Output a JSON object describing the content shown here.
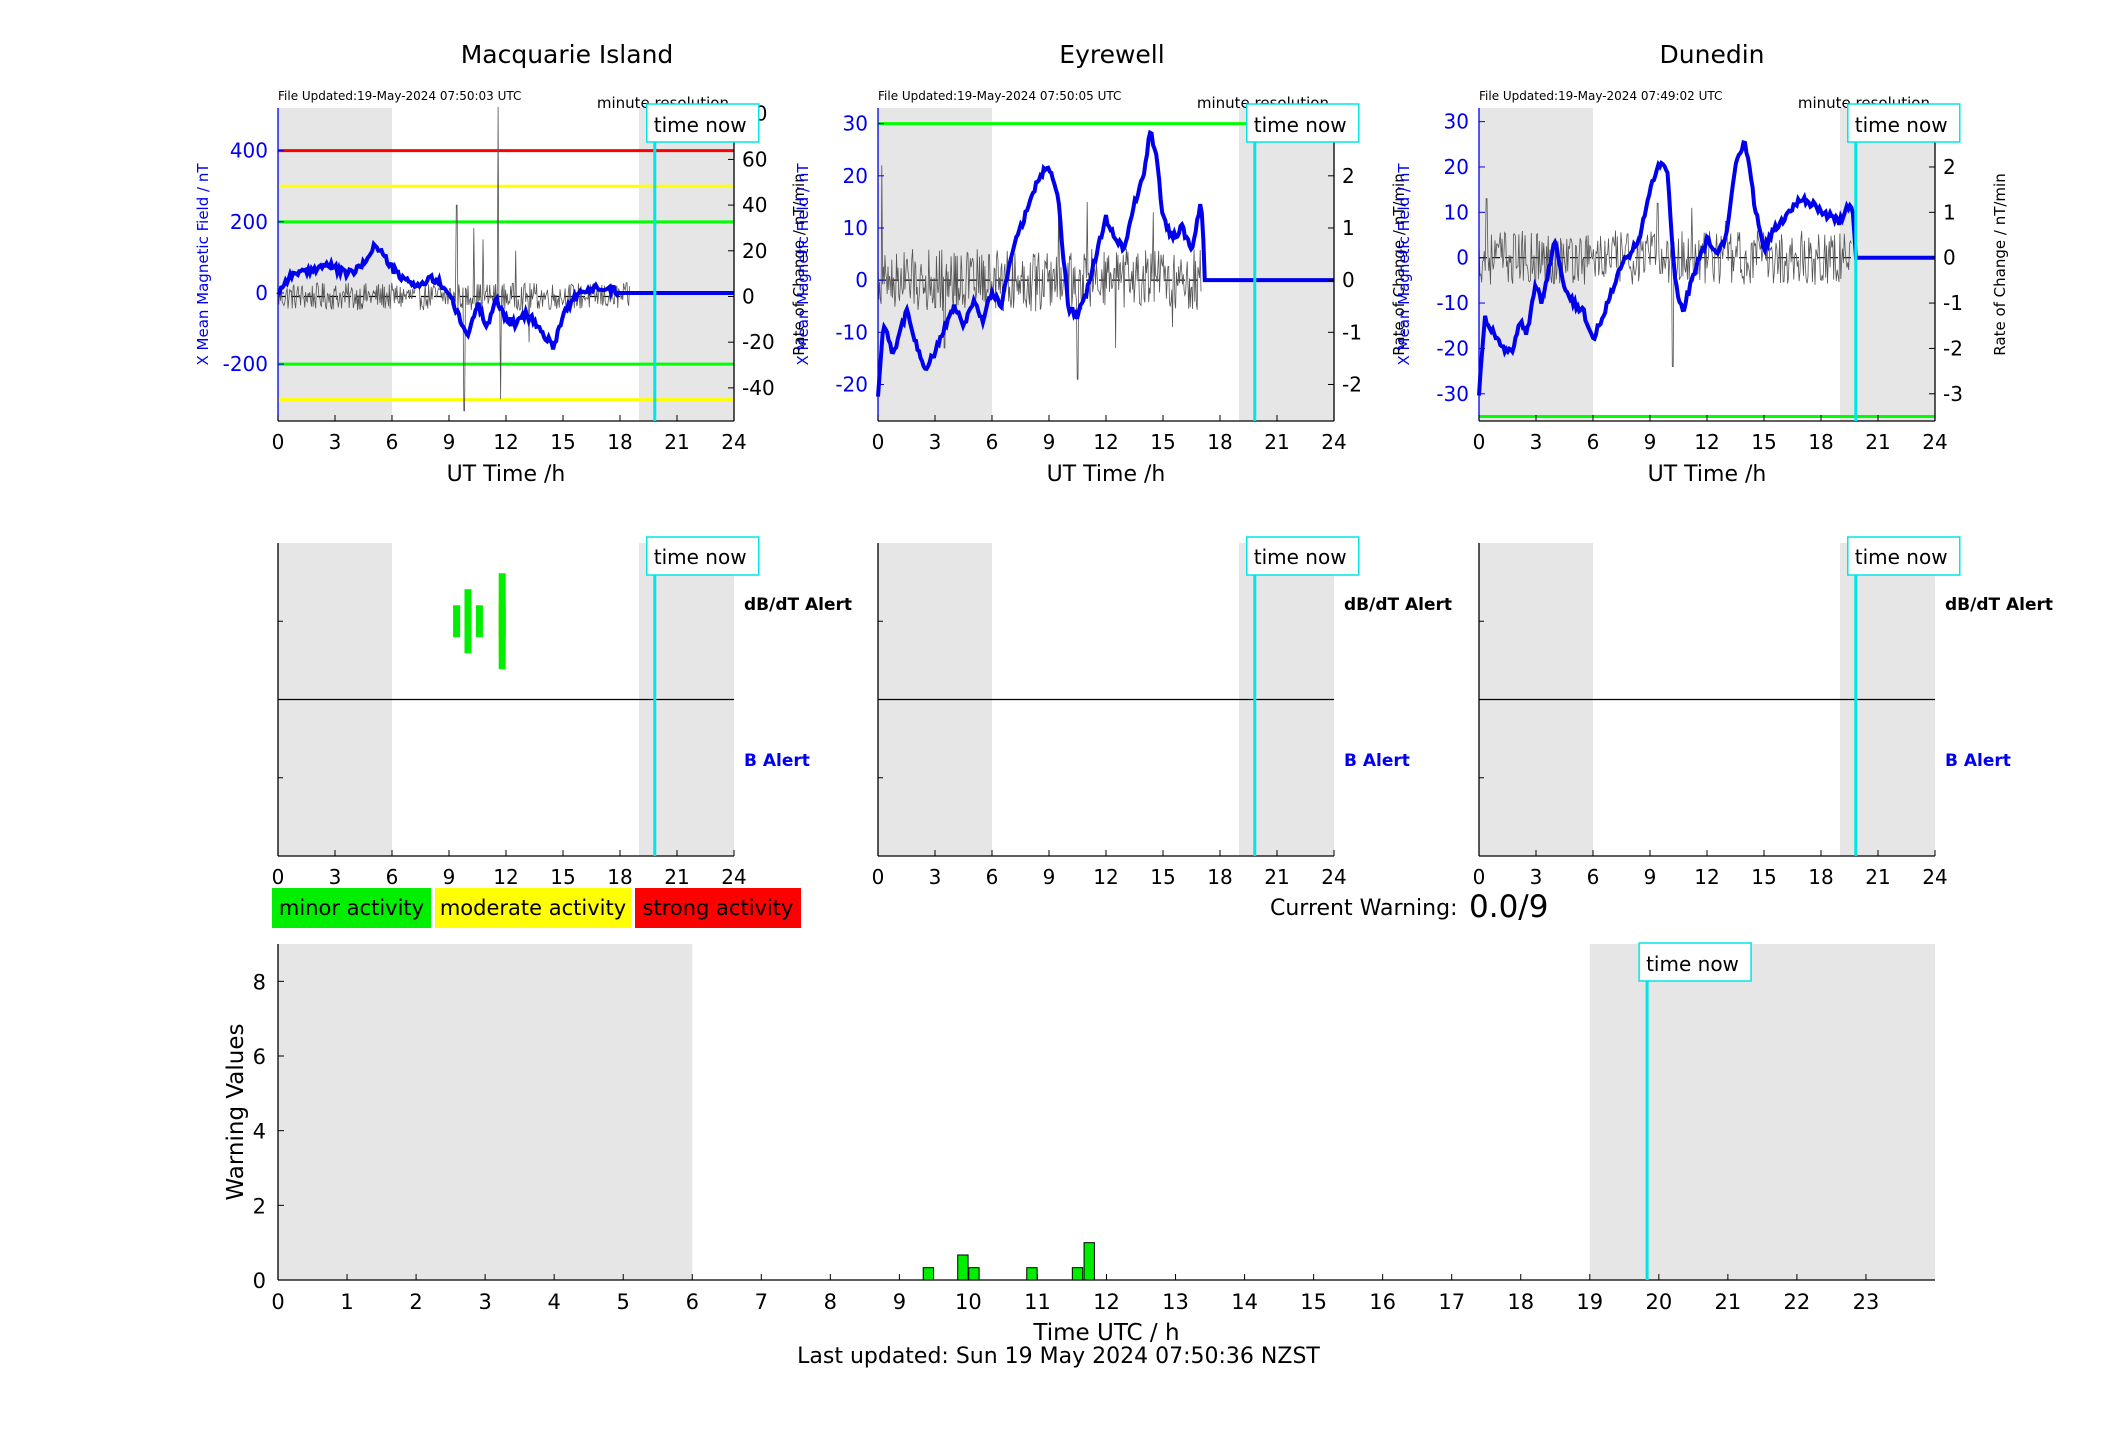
{
  "stations": [
    {
      "name": "Macquarie Island",
      "file_updated": "File Updated:19-May-2024 07:50:03 UTC",
      "resolution_label": "minute resolution",
      "time_now_label": "time now",
      "ylabel_left": "X Mean Magnetic Field / nT",
      "ylabel_right": "Rate of Change / nT/min",
      "xlabel": "UT Time /h",
      "ylim_left": [
        -360,
        520
      ],
      "yticks_left": [
        -200,
        0,
        200,
        400
      ],
      "ylim_right": [
        -54.5,
        82.5
      ],
      "yticks_right": [
        -40,
        -20,
        0,
        20,
        40,
        60,
        80
      ],
      "thresholds": [
        {
          "value": 400,
          "color": "#ff0000"
        },
        {
          "value": 300,
          "color": "#ffff00"
        },
        {
          "value": 200,
          "color": "#00ff00"
        },
        {
          "value": -200,
          "color": "#00ff00"
        },
        {
          "value": -300,
          "color": "#ffff00"
        }
      ],
      "x_keys": [
        0,
        0.5,
        1,
        1.5,
        2,
        2.5,
        3,
        3.5,
        4,
        4.5,
        5,
        5.2,
        5.5,
        6,
        6.5,
        7,
        7.5,
        8,
        8.5,
        9,
        9.3,
        9.6,
        10,
        10.5,
        11,
        11.5,
        12,
        12.5,
        13,
        13.5,
        14,
        14.5,
        15,
        15.5,
        16,
        16.5,
        17,
        17.5,
        18,
        18.5,
        19,
        19.5,
        19.83,
        20,
        24
      ],
      "b_keys": [
        0,
        40,
        60,
        55,
        70,
        80,
        70,
        55,
        60,
        80,
        130,
        130,
        110,
        70,
        40,
        30,
        20,
        40,
        30,
        0,
        -40,
        -80,
        -120,
        -30,
        -90,
        -20,
        -70,
        -90,
        -60,
        -80,
        -120,
        -150,
        -60,
        -20,
        0,
        10,
        20,
        10,
        0,
        0,
        0,
        0,
        0,
        0,
        0
      ],
      "roc_spikes": [
        {
          "x": 9.4,
          "v": 40
        },
        {
          "x": 9.8,
          "v": -50
        },
        {
          "x": 10.3,
          "v": 30
        },
        {
          "x": 10.8,
          "v": 25
        },
        {
          "x": 11.6,
          "v": 83
        },
        {
          "x": 11.7,
          "v": -45
        },
        {
          "x": 12.5,
          "v": 20
        },
        {
          "x": 13.2,
          "v": -20
        }
      ],
      "roc_amp": 6,
      "roc_until": 18.5,
      "data_end": 18,
      "alerts": {
        "dbdt_label": "dB/dT Alert",
        "b_label": "B Alert",
        "bars": [
          {
            "x": 9.4,
            "levels": [
              "minor"
            ]
          },
          {
            "x": 10,
            "levels": [
              "moderate",
              "minor"
            ]
          },
          {
            "x": 10.6,
            "levels": [
              "minor"
            ]
          },
          {
            "x": 11.8,
            "levels": [
              "strong",
              "moderate",
              "minor"
            ]
          }
        ]
      }
    },
    {
      "name": "Eyrewell",
      "file_updated": "File Updated:19-May-2024 07:50:05 UTC",
      "resolution_label": "minute resolution",
      "time_now_label": "time now",
      "ylabel_left": "X Mean Magnetic Field / nT",
      "ylabel_right": "Rate of Change / nT/min",
      "xlabel": "UT Time /h",
      "ylim_left": [
        -27,
        33
      ],
      "yticks_left": [
        -20,
        -10,
        0,
        10,
        20,
        30
      ],
      "ylim_right": [
        -2.7,
        3.3
      ],
      "yticks_right": [
        -2,
        -1,
        0,
        1,
        2,
        3
      ],
      "thresholds": [
        {
          "value": 30,
          "color": "#00ff00"
        }
      ],
      "x_keys": [
        0,
        0.3,
        0.8,
        1.5,
        2,
        2.5,
        3,
        3.5,
        4,
        4.5,
        5,
        5.5,
        6,
        6.5,
        7,
        7.5,
        8,
        8.5,
        9,
        9.5,
        10,
        10.5,
        11,
        11.5,
        12,
        12.5,
        13,
        13.5,
        14,
        14.3,
        14.6,
        15,
        15.5,
        16,
        16.5,
        17,
        17.1,
        17.2,
        19.83,
        24
      ],
      "b_keys": [
        -22,
        -8,
        -14,
        -6,
        -12,
        -17,
        -14,
        -9,
        -5,
        -9,
        -4,
        -8,
        -2,
        -5,
        5,
        10,
        15,
        20,
        22,
        15,
        -5,
        -7,
        -2,
        5,
        12,
        8,
        6,
        15,
        20,
        29,
        25,
        12,
        8,
        10,
        6,
        15,
        9,
        0,
        0,
        0
      ],
      "roc_spikes": [
        {
          "x": 0.2,
          "v": 2.2
        },
        {
          "x": 3.5,
          "v": -1.3
        },
        {
          "x": 9.5,
          "v": 1.5
        },
        {
          "x": 10.5,
          "v": -1.9
        },
        {
          "x": 11,
          "v": 1.5
        },
        {
          "x": 12.5,
          "v": -1.3
        },
        {
          "x": 14.5,
          "v": 1.3
        },
        {
          "x": 15.5,
          "v": -0.9
        }
      ],
      "roc_amp": 0.6,
      "roc_until": 17,
      "data_end": 17.2,
      "alerts": {
        "dbdt_label": "dB/dT Alert",
        "b_label": "B Alert",
        "bars": []
      }
    },
    {
      "name": "Dunedin",
      "file_updated": "File Updated:19-May-2024 07:49:02 UTC",
      "resolution_label": "minute resolution",
      "time_now_label": "time now",
      "ylabel_left": "X Mean Magnetic Field / nT",
      "ylabel_right": "Rate of Change / nT/min",
      "xlabel": "UT Time /h",
      "ylim_left": [
        -36,
        33
      ],
      "yticks_left": [
        -30,
        -20,
        -10,
        0,
        10,
        20,
        30
      ],
      "ylim_right": [
        -3.6,
        3.3
      ],
      "yticks_right": [
        -3,
        -2,
        -1,
        0,
        1,
        2,
        3
      ],
      "thresholds": [
        {
          "value": -35,
          "color": "#00ff00"
        }
      ],
      "x_keys": [
        0,
        0.3,
        0.7,
        1.2,
        1.7,
        2.2,
        2.5,
        3,
        3.3,
        3.7,
        4,
        4.5,
        5,
        5.5,
        6,
        6.5,
        7,
        7.5,
        8,
        8.5,
        9,
        9.4,
        9.9,
        10.3,
        10.7,
        11,
        11.5,
        12,
        12.5,
        13,
        13.5,
        14,
        14.5,
        15,
        15.5,
        16,
        16.5,
        17,
        17.5,
        18,
        18.5,
        19,
        19.5,
        19.7,
        19.83,
        24
      ],
      "b_keys": [
        -30,
        -13,
        -16,
        -20,
        -21,
        -14,
        -17,
        -6,
        -10,
        -2,
        4,
        -6,
        -10,
        -12,
        -18,
        -13,
        -7,
        -1,
        1,
        5,
        15,
        20,
        20,
        -5,
        -12,
        -8,
        -1,
        4,
        1,
        4,
        20,
        26,
        12,
        2,
        6,
        8,
        11,
        13,
        12,
        10,
        9,
        8,
        12,
        10,
        0,
        0
      ],
      "roc_spikes": [
        {
          "x": 0.4,
          "v": 1.3
        },
        {
          "x": 9.4,
          "v": 1.2
        },
        {
          "x": 10.2,
          "v": -2.4
        },
        {
          "x": 11.2,
          "v": 1.1
        },
        {
          "x": 3.5,
          "v": -0.9
        },
        {
          "x": 13,
          "v": 0.8
        }
      ],
      "roc_amp": 0.6,
      "roc_until": 19.6,
      "data_end": 19.83,
      "alerts": {
        "dbdt_label": "dB/dT Alert",
        "b_label": "B Alert",
        "bars": []
      }
    }
  ],
  "shared": {
    "xlim": [
      0,
      24
    ],
    "xticks": [
      0,
      3,
      6,
      9,
      12,
      15,
      18,
      21,
      24
    ],
    "night_shading": [
      [
        0,
        6
      ],
      [
        19,
        24
      ]
    ],
    "time_now": 19.83,
    "colors": {
      "field_line": "#0000ee",
      "roc_line": "#555555",
      "time_now": "#00e5e5",
      "shade": "#e6e6e6",
      "minor": "#00ee00",
      "moderate": "#ffff00",
      "strong": "#ff0000"
    }
  },
  "legend": {
    "minor": "minor activity",
    "moderate": "moderate activity",
    "strong": "strong activity"
  },
  "current_warning": {
    "label": "Current Warning:",
    "value": "0.0/9"
  },
  "chart_data": {
    "type": "bar",
    "title": "",
    "xlabel": "Time UTC / h",
    "ylabel": "Warning Values",
    "xlim": [
      0,
      24
    ],
    "ylim": [
      0,
      9
    ],
    "xticks": [
      0,
      1,
      2,
      3,
      4,
      5,
      6,
      7,
      8,
      9,
      10,
      11,
      12,
      13,
      14,
      15,
      16,
      17,
      18,
      19,
      20,
      21,
      22,
      23
    ],
    "yticks": [
      0,
      2,
      4,
      6,
      8
    ],
    "x": [
      9.42,
      9.92,
      10.08,
      10.92,
      11.58,
      11.75
    ],
    "values": [
      0.33,
      0.67,
      0.33,
      0.33,
      0.33,
      1.0
    ],
    "shading": [
      [
        0,
        6
      ],
      [
        19,
        24
      ]
    ],
    "time_now": 19.83,
    "time_now_label": "time now"
  },
  "footer": "Last updated: Sun 19 May 2024 07:50:36 NZST"
}
